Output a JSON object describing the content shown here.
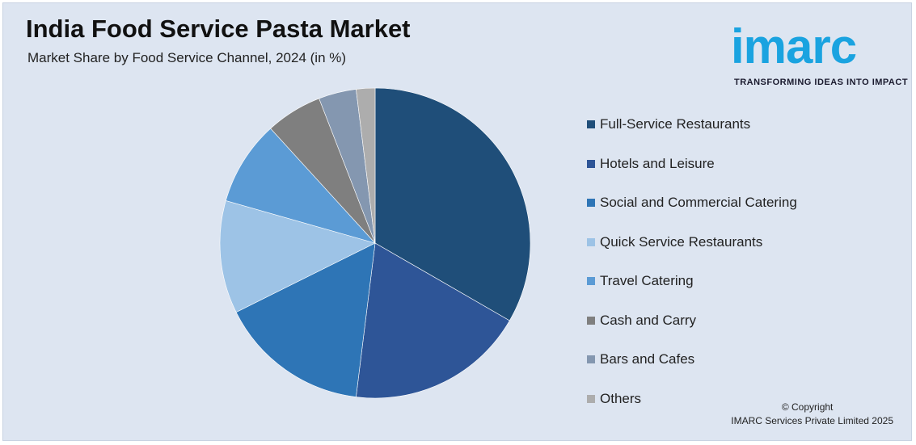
{
  "header": {
    "title": "India Food Service Pasta Market",
    "subtitle": "Market Share by Food Service Channel, 2024 (in %)"
  },
  "logo": {
    "word": "imarc",
    "tagline": "TRANSFORMING IDEAS INTO IMPACT",
    "color": "#1aa3e0"
  },
  "chart_data": {
    "type": "pie",
    "title": "India Food Service Pasta Market",
    "subtitle": "Market Share by Food Service Channel, 2024 (in %)",
    "legend_position": "right",
    "slices": [
      {
        "label": "Full-Service Restaurants",
        "value": 34,
        "color": "#1f4e79"
      },
      {
        "label": "Hotels and Leisure",
        "value": 19,
        "color": "#2e5597"
      },
      {
        "label": "Social and Commercial Catering",
        "value": 16,
        "color": "#2e75b6"
      },
      {
        "label": "Quick Service Restaurants",
        "value": 12,
        "color": "#9dc3e6"
      },
      {
        "label": "Travel Catering",
        "value": 9,
        "color": "#5b9bd5"
      },
      {
        "label": "Cash and Carry",
        "value": 6,
        "color": "#7f7f7f"
      },
      {
        "label": "Bars and Cafes",
        "value": 4,
        "color": "#8497b0"
      },
      {
        "label": "Others",
        "value": 2,
        "color": "#adadad"
      }
    ]
  },
  "footer": {
    "copyright_line1": "© Copyright",
    "copyright_line2": "IMARC Services Private Limited 2025"
  }
}
